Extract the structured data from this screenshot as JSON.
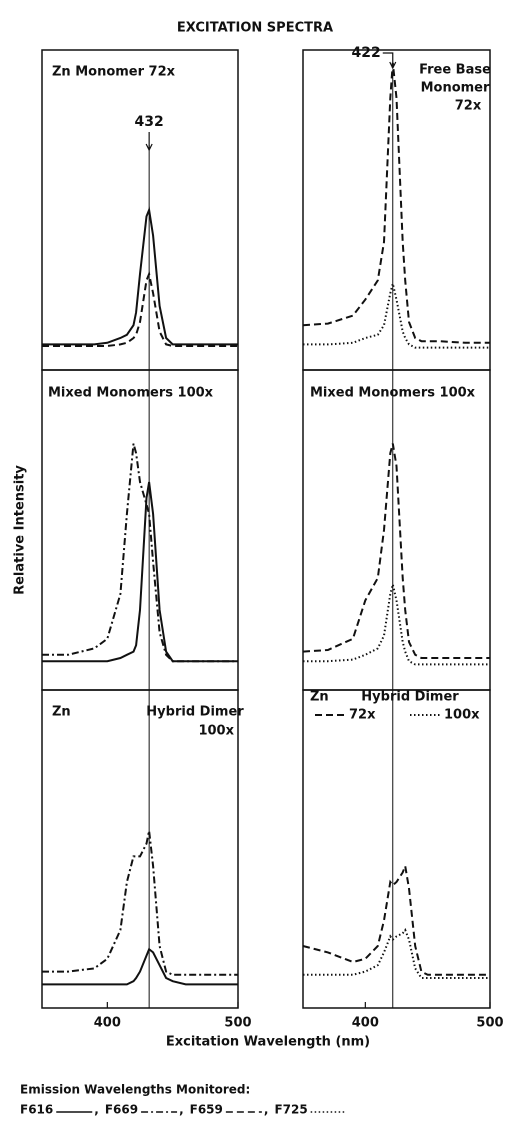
{
  "figure": {
    "title": "EXCITATION SPECTRA",
    "ylabel": "Relative Intensity",
    "xlabel": "Excitation Wavelength (nm)",
    "legend_title": "Emission Wavelengths Monitored:",
    "legend_separator": ",",
    "legend": [
      {
        "name": "F616",
        "dash": "solid"
      },
      {
        "name": "F669",
        "dash": "dashdot"
      },
      {
        "name": "F659",
        "dash": "dashed"
      },
      {
        "name": "F725",
        "dash": "dotted"
      }
    ]
  },
  "chart_data": [
    {
      "type": "line",
      "title": [
        "Zn Monomer  72x"
      ],
      "xlim": [
        350,
        500
      ],
      "ylim": [
        0,
        100
      ],
      "x": [
        350,
        370,
        390,
        400,
        410,
        415,
        420,
        422,
        425,
        430,
        432,
        435,
        440,
        445,
        450,
        460,
        480,
        500
      ],
      "annotations": [
        {
          "text": "432",
          "x": 432
        }
      ],
      "series": [
        {
          "dash": "solid",
          "color": "#111111",
          "values": [
            8,
            8,
            8,
            8.5,
            10,
            11,
            14,
            18,
            30,
            48,
            50,
            42,
            20,
            10,
            8,
            8,
            8,
            8
          ]
        },
        {
          "dash": "dashed",
          "color": "#111111",
          "values": [
            7.5,
            7.5,
            7.5,
            7.5,
            8,
            8.5,
            10,
            11,
            15,
            28,
            30,
            24,
            12,
            8,
            7.5,
            7.5,
            7.5,
            7.5
          ]
        }
      ]
    },
    {
      "type": "line",
      "title": [
        "Free Base",
        "Monomer",
        "72x"
      ],
      "xlim": [
        350,
        500
      ],
      "ylim": [
        0,
        100
      ],
      "x": [
        350,
        370,
        390,
        400,
        410,
        415,
        420,
        422,
        425,
        430,
        432,
        435,
        440,
        445,
        450,
        460,
        480,
        500
      ],
      "annotations": [
        {
          "text": "422",
          "x": 422
        }
      ],
      "series": [
        {
          "dash": "dashed",
          "color": "#111111",
          "values": [
            14,
            14.5,
            17,
            22,
            28,
            40,
            85,
            96,
            85,
            40,
            28,
            15,
            10,
            9,
            9,
            9,
            8.5,
            8.5
          ]
        },
        {
          "dash": "dotted",
          "color": "#111111",
          "values": [
            8,
            8,
            8.5,
            10,
            11,
            14,
            24,
            27,
            22,
            12,
            10,
            8,
            7,
            7,
            7,
            7,
            7,
            7
          ]
        }
      ]
    },
    {
      "type": "line",
      "title": [
        "Mixed Monomers 100x"
      ],
      "xlim": [
        350,
        500
      ],
      "ylim": [
        0,
        100
      ],
      "x": [
        350,
        370,
        390,
        400,
        410,
        415,
        420,
        422,
        425,
        430,
        432,
        435,
        440,
        445,
        450,
        460,
        480,
        500
      ],
      "series": [
        {
          "dash": "solid",
          "color": "#111111",
          "values": [
            9,
            9,
            9,
            9,
            10,
            11,
            12,
            14,
            25,
            60,
            65,
            55,
            25,
            12,
            9,
            9,
            9,
            9
          ]
        },
        {
          "dash": "dashdot",
          "color": "#111111",
          "values": [
            11,
            11,
            13,
            16,
            30,
            55,
            77,
            74,
            65,
            58,
            55,
            40,
            18,
            11,
            9,
            9,
            9,
            9
          ]
        }
      ]
    },
    {
      "type": "line",
      "title": [
        "Mixed Monomers 100x"
      ],
      "xlim": [
        350,
        500
      ],
      "ylim": [
        0,
        100
      ],
      "x": [
        350,
        370,
        390,
        400,
        410,
        415,
        420,
        422,
        425,
        430,
        432,
        435,
        440,
        445,
        450,
        460,
        480,
        500
      ],
      "series": [
        {
          "dash": "dashed",
          "color": "#111111",
          "values": [
            12,
            12.5,
            16,
            28,
            35,
            50,
            74,
            77,
            70,
            35,
            25,
            15,
            11,
            10,
            10,
            10,
            10,
            10
          ]
        },
        {
          "dash": "dotted",
          "color": "#111111",
          "values": [
            9,
            9,
            9.5,
            11,
            13,
            17,
            30,
            33,
            28,
            15,
            12,
            9,
            8,
            8,
            8,
            8,
            8,
            8
          ]
        }
      ]
    },
    {
      "type": "line",
      "title": [
        "Zn",
        "Hybrid Dimer",
        "100x"
      ],
      "xlim": [
        350,
        500
      ],
      "ylim": [
        0,
        100
      ],
      "xticks": [
        400,
        500
      ],
      "x": [
        350,
        370,
        390,
        400,
        410,
        415,
        420,
        422,
        425,
        430,
        432,
        435,
        440,
        445,
        450,
        460,
        480,
        500
      ],
      "series": [
        {
          "dash": "solid",
          "color": "#111111",
          "values": [
            8,
            8,
            8,
            8,
            8,
            8,
            9,
            10,
            12,
            17,
            19,
            18,
            14,
            10,
            9,
            8,
            8,
            8
          ]
        },
        {
          "dash": "dashdot",
          "color": "#111111",
          "values": [
            12,
            12,
            13,
            16,
            25,
            40,
            48,
            48,
            48,
            52,
            56,
            45,
            20,
            12,
            11,
            11,
            11,
            11
          ]
        }
      ]
    },
    {
      "type": "line",
      "title": [
        "Zn",
        "Hybrid Dimer"
      ],
      "xlim": [
        350,
        500
      ],
      "ylim": [
        0,
        100
      ],
      "xticks": [
        400,
        500
      ],
      "x": [
        350,
        370,
        390,
        400,
        410,
        415,
        420,
        422,
        425,
        430,
        432,
        435,
        440,
        445,
        450,
        460,
        480,
        500
      ],
      "series": [
        {
          "name": "72x",
          "dash": "dashed",
          "color": "#111111",
          "values": [
            20,
            18,
            15,
            16,
            20,
            28,
            40,
            39,
            40,
            43,
            45,
            38,
            20,
            12,
            11,
            11,
            11,
            11
          ]
        },
        {
          "name": "100x",
          "dash": "dotted",
          "color": "#111111",
          "values": [
            11,
            11,
            11,
            12,
            14,
            18,
            23,
            22,
            23,
            24,
            25,
            22,
            13,
            10,
            10,
            10,
            10,
            10
          ]
        }
      ]
    }
  ]
}
